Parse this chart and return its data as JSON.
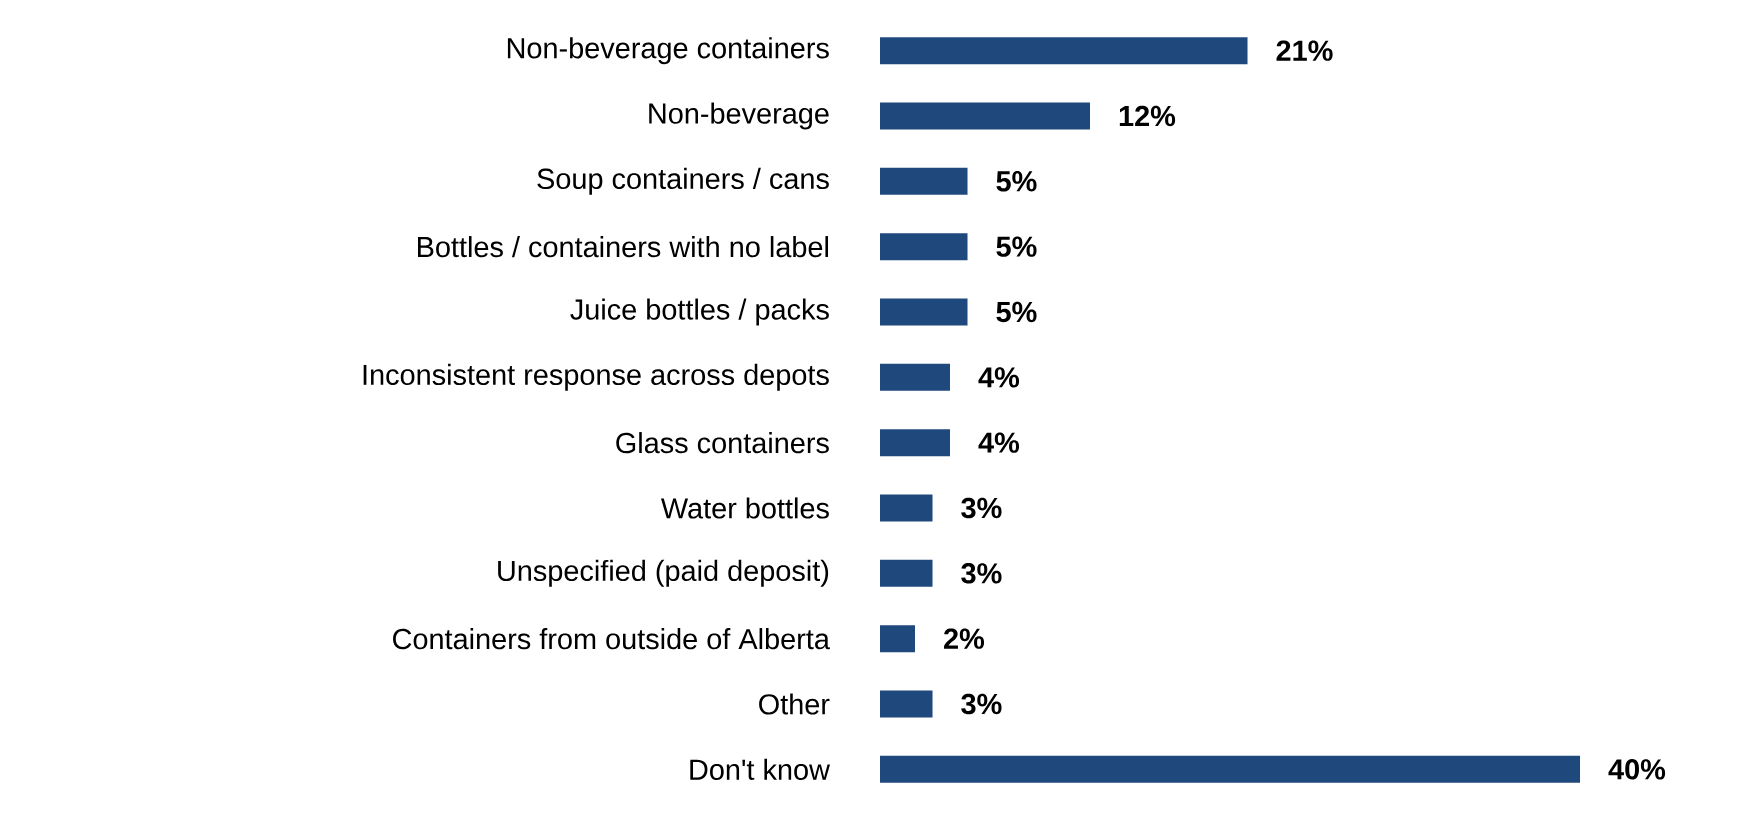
{
  "chart_data": {
    "type": "bar",
    "orientation": "horizontal",
    "categories": [
      "Non-beverage containers",
      "Non-beverage",
      "Soup containers / cans",
      "Bottles / containers with no label",
      "Juice bottles / packs",
      "Inconsistent response across depots",
      "Glass containers",
      "Water bottles",
      "Unspecified (paid deposit)",
      "Containers from outside of Alberta",
      "Other",
      "Don't know"
    ],
    "values": [
      21,
      12,
      5,
      5,
      5,
      4,
      4,
      3,
      3,
      2,
      3,
      40
    ],
    "value_labels": [
      "21%",
      "12%",
      "5%",
      "5%",
      "5%",
      "4%",
      "4%",
      "3%",
      "3%",
      "2%",
      "3%",
      "40%"
    ],
    "color": "#1f497d"
  }
}
